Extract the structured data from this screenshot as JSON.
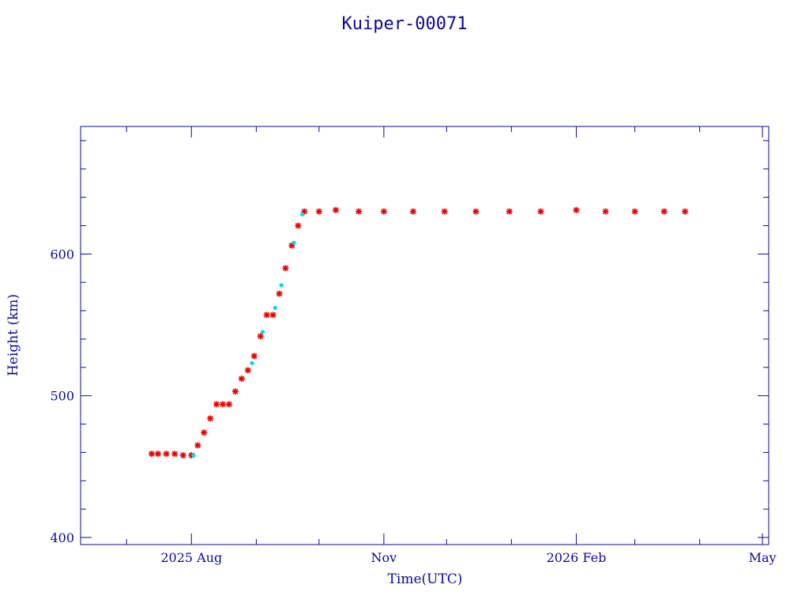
{
  "chart_data": {
    "type": "scatter",
    "title": "Kuiper-00071",
    "xlabel": "Time(UTC)",
    "ylabel": "Height (km)",
    "x_range": [
      "2025-06-09",
      "2026-05-04"
    ],
    "ylim": [
      395,
      690
    ],
    "x_tick_labels": [
      {
        "date": "2025-08-01",
        "label": "2025 Aug"
      },
      {
        "date": "2025-11-01",
        "label": "Nov"
      },
      {
        "date": "2026-02-01",
        "label": "2026 Feb"
      },
      {
        "date": "2026-05-01",
        "label": "May"
      }
    ],
    "y_ticks": [
      400,
      500,
      600
    ],
    "grid": false,
    "colors": {
      "axis": "#0a0a9a",
      "series_main": "#ee0000",
      "series_secondary": "#00dddd"
    },
    "series": [
      {
        "color": "#ee0000",
        "marker": "asterisk",
        "points": [
          [
            "2025-07-13",
            459
          ],
          [
            "2025-07-16",
            459
          ],
          [
            "2025-07-20",
            459
          ],
          [
            "2025-07-24",
            459
          ],
          [
            "2025-07-28",
            458
          ],
          [
            "2025-08-01",
            458
          ],
          [
            "2025-08-04",
            465
          ],
          [
            "2025-08-07",
            474
          ],
          [
            "2025-08-10",
            484
          ],
          [
            "2025-08-13",
            494
          ],
          [
            "2025-08-16",
            494
          ],
          [
            "2025-08-19",
            494
          ],
          [
            "2025-08-22",
            503
          ],
          [
            "2025-08-25",
            512
          ],
          [
            "2025-08-28",
            518
          ],
          [
            "2025-08-31",
            528
          ],
          [
            "2025-09-03",
            542
          ],
          [
            "2025-09-06",
            557
          ],
          [
            "2025-09-09",
            557
          ],
          [
            "2025-09-12",
            572
          ],
          [
            "2025-09-15",
            590
          ],
          [
            "2025-09-18",
            606
          ],
          [
            "2025-09-21",
            620
          ],
          [
            "2025-09-24",
            630
          ],
          [
            "2025-10-01",
            630
          ],
          [
            "2025-10-09",
            631
          ],
          [
            "2025-10-20",
            630
          ],
          [
            "2025-11-01",
            630
          ],
          [
            "2025-11-15",
            630
          ],
          [
            "2025-11-30",
            630
          ],
          [
            "2025-12-15",
            630
          ],
          [
            "2025-12-31",
            630
          ],
          [
            "2026-01-15",
            630
          ],
          [
            "2026-02-01",
            631
          ],
          [
            "2026-02-15",
            630
          ],
          [
            "2026-03-01",
            630
          ],
          [
            "2026-03-15",
            630
          ],
          [
            "2026-03-25",
            630
          ]
        ]
      },
      {
        "color": "#00dddd",
        "marker": "dot",
        "points": [
          [
            "2025-08-02",
            458
          ],
          [
            "2025-08-30",
            523
          ],
          [
            "2025-09-04",
            545
          ],
          [
            "2025-09-10",
            562
          ],
          [
            "2025-09-13",
            578
          ],
          [
            "2025-09-19",
            608
          ],
          [
            "2025-09-23",
            628
          ]
        ]
      }
    ]
  }
}
